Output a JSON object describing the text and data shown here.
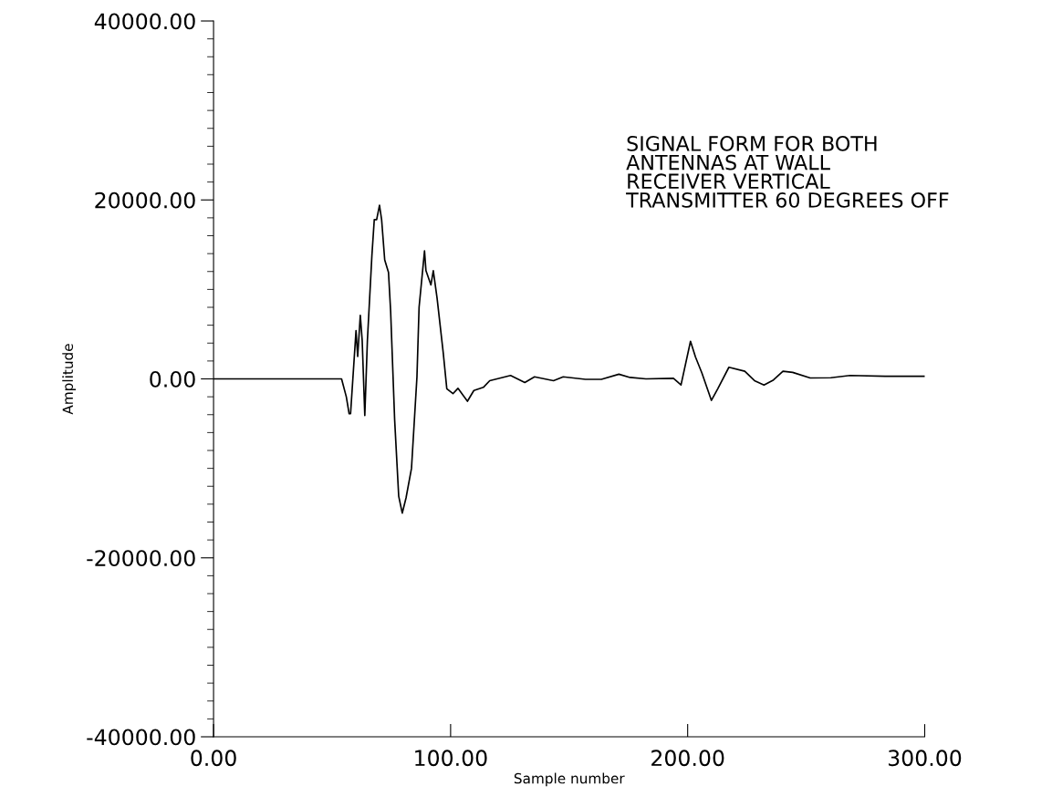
{
  "chart_data": {
    "type": "line",
    "xlabel": "Sample number",
    "ylabel": "Amplitude",
    "annotations": [
      "SIGNAL FORM FOR BOTH\nANTENNAS AT WALL\nRECEIVER VERTICAL\nTRANSMITTER 60 DEGREES OFF"
    ],
    "x": [
      0,
      20,
      40,
      54,
      56,
      57.2,
      57.8,
      60.1,
      60.8,
      61.9,
      62.7,
      63.8,
      64.9,
      66.8,
      67.8,
      68.8,
      70,
      70.9,
      72.2,
      73.8,
      74.7,
      76.4,
      78.1,
      79.6,
      81.2,
      83.5,
      85.8,
      86.7,
      89,
      89.6,
      91.7,
      92.7,
      94.3,
      96.9,
      98.4,
      101,
      103.1,
      107.1,
      109.8,
      113.8,
      116.5,
      125.3,
      131.3,
      135.4,
      143.4,
      147.5,
      156.9,
      163.6,
      171,
      175.7,
      182.4,
      194,
      197.2,
      201.2,
      203.3,
      206,
      210,
      212.7,
      217.4,
      224.1,
      228.2,
      232.2,
      236.2,
      240.2,
      244.3,
      251.7,
      260.4,
      268.5,
      283.3,
      300
    ],
    "series": [
      {
        "color": "#000000",
        "values": [
          0,
          0,
          0,
          0,
          -2000,
          -3900,
          -3900,
          5400,
          2500,
          7100,
          4300,
          -4100,
          4300,
          13800,
          17800,
          17800,
          19400,
          17800,
          13300,
          11900,
          7600,
          -4600,
          -13100,
          -15000,
          -13300,
          -10000,
          200,
          8000,
          14300,
          12100,
          10500,
          12100,
          9000,
          2900,
          -1100,
          -1650,
          -1050,
          -2500,
          -1300,
          -950,
          -200,
          380,
          -400,
          230,
          -200,
          230,
          -50,
          -50,
          520,
          160,
          0,
          60,
          -680,
          4200,
          2450,
          660,
          -2400,
          -1100,
          1300,
          850,
          -200,
          -680,
          -120,
          850,
          730,
          100,
          130,
          380,
          300,
          300
        ]
      }
    ],
    "xlim": [
      0,
      300
    ],
    "xticks": [
      {
        "value": 0,
        "label": "0.00"
      },
      {
        "value": 100,
        "label": "100.00"
      },
      {
        "value": 200,
        "label": "200.00"
      },
      {
        "value": 300,
        "label": "300.00"
      }
    ],
    "ylim": [
      -40000,
      40000
    ],
    "yticks": [
      {
        "value": -40000,
        "label": "-40000.00"
      },
      {
        "value": -20000,
        "label": "-20000.00"
      },
      {
        "value": 0,
        "label": "0.00"
      },
      {
        "value": 20000,
        "label": "20000.00"
      },
      {
        "value": 40000,
        "label": "40000.00"
      }
    ],
    "grid": false,
    "marker": "none",
    "line_style": "solid"
  }
}
